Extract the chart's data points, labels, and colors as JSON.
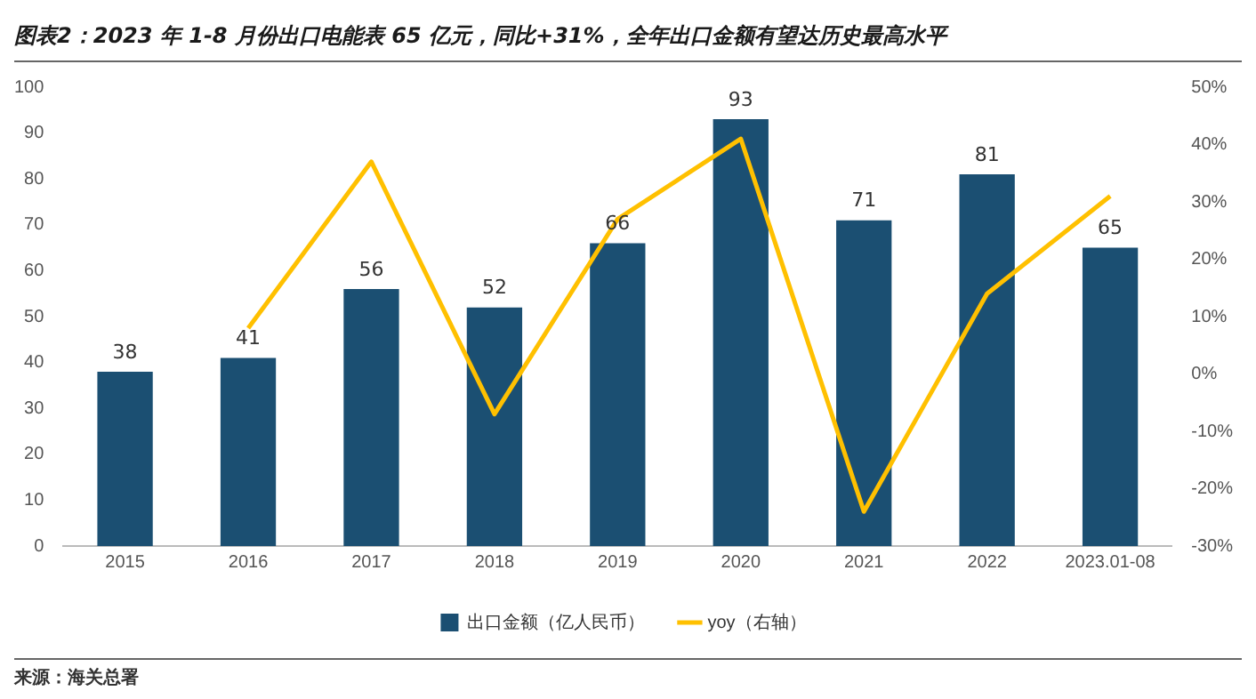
{
  "chart_data": {
    "type": "bar",
    "title": "图表2：2023 年 1-8 月份出口电能表 65 亿元，同比+31%，全年出口金额有望达历史最高水平",
    "categories": [
      "2015",
      "2016",
      "2017",
      "2018",
      "2019",
      "2020",
      "2021",
      "2022",
      "2023.01-08"
    ],
    "series": [
      {
        "name": "出口金额（亿人民币）",
        "color": "#1b4f72",
        "values": [
          38,
          41,
          56,
          52,
          66,
          93,
          71,
          81,
          65
        ],
        "value_labels": [
          "38",
          "41",
          "56",
          "52",
          "66",
          "93",
          "71",
          "81",
          "65"
        ]
      },
      {
        "name": "yoy（右轴）",
        "type": "line",
        "axis": "y2",
        "color": "#ffc000",
        "values": [
          null,
          8,
          37,
          -7,
          27,
          41,
          -24,
          14,
          31
        ]
      }
    ],
    "ylim": [
      0,
      100
    ],
    "yticks": [
      0,
      10,
      20,
      30,
      40,
      50,
      60,
      70,
      80,
      90,
      100
    ],
    "y2lim": [
      -30,
      50
    ],
    "y2ticks": [
      {
        "value": -30,
        "label": "-30%"
      },
      {
        "value": -20,
        "label": "-20%"
      },
      {
        "value": -10,
        "label": "-10%"
      },
      {
        "value": 0,
        "label": "0%"
      },
      {
        "value": 10,
        "label": "10%"
      },
      {
        "value": 20,
        "label": "20%"
      },
      {
        "value": 30,
        "label": "30%"
      },
      {
        "value": 40,
        "label": "40%"
      },
      {
        "value": 50,
        "label": "50%"
      }
    ],
    "grid": false,
    "legend": "bottom",
    "marker": "none",
    "annotations": [
      "来源：海关总署"
    ]
  }
}
